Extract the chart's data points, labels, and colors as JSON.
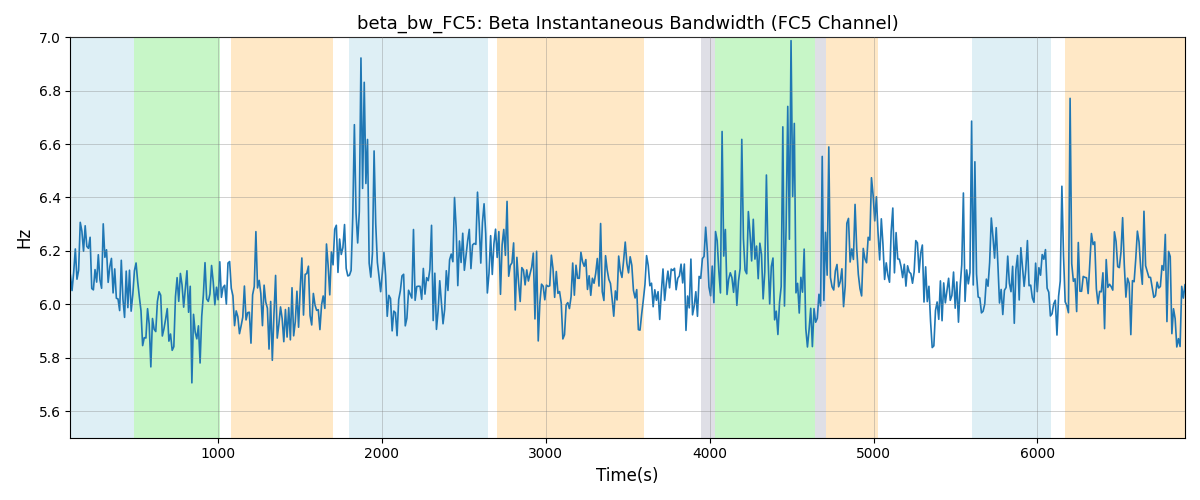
{
  "title": "beta_bw_FC5: Beta Instantaneous Bandwidth (FC5 Channel)",
  "xlabel": "Time(s)",
  "ylabel": "Hz",
  "ylim": [
    5.5,
    7.0
  ],
  "xlim": [
    100,
    6900
  ],
  "yticks": [
    5.6,
    5.8,
    6.0,
    6.2,
    6.4,
    6.6,
    6.8,
    7.0
  ],
  "xticks": [
    1000,
    2000,
    3000,
    4000,
    5000,
    6000
  ],
  "line_color": "#1f77b4",
  "line_width": 1.2,
  "figsize": [
    12,
    5
  ],
  "dpi": 100,
  "background_regions": [
    {
      "xmin": 100,
      "xmax": 490,
      "color": "#add8e6",
      "alpha": 0.4
    },
    {
      "xmin": 490,
      "xmax": 1010,
      "color": "#90ee90",
      "alpha": 0.5
    },
    {
      "xmin": 1080,
      "xmax": 1700,
      "color": "#ffd9a0",
      "alpha": 0.6
    },
    {
      "xmin": 1800,
      "xmax": 2650,
      "color": "#add8e6",
      "alpha": 0.4
    },
    {
      "xmin": 2700,
      "xmax": 3600,
      "color": "#ffd9a0",
      "alpha": 0.6
    },
    {
      "xmin": 3950,
      "xmax": 4030,
      "color": "#b8b8c8",
      "alpha": 0.45
    },
    {
      "xmin": 4030,
      "xmax": 4640,
      "color": "#90ee90",
      "alpha": 0.5
    },
    {
      "xmin": 4640,
      "xmax": 4710,
      "color": "#b8b8c8",
      "alpha": 0.45
    },
    {
      "xmin": 4710,
      "xmax": 5030,
      "color": "#ffd9a0",
      "alpha": 0.6
    },
    {
      "xmin": 5600,
      "xmax": 6080,
      "color": "#add8e6",
      "alpha": 0.4
    },
    {
      "xmin": 6170,
      "xmax": 6900,
      "color": "#ffd9a0",
      "alpha": 0.6
    }
  ],
  "seed": 42,
  "n_points": 680
}
